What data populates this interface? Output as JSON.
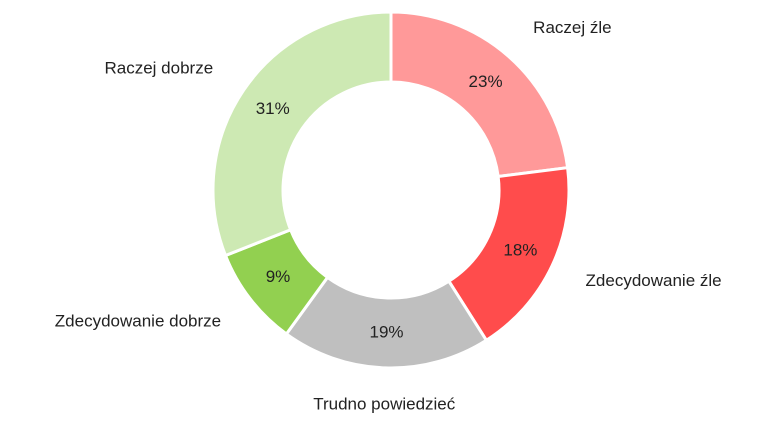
{
  "chart_data": {
    "type": "pie",
    "categories": [
      "Raczej źle",
      "Zdecydowanie źle",
      "Trudno powiedzieć",
      "Zdecydowanie dobrze",
      "Raczej dobrze"
    ],
    "values": [
      23,
      18,
      19,
      9,
      31
    ],
    "value_labels": [
      "23%",
      "18%",
      "19%",
      "9%",
      "31%"
    ],
    "colors": [
      "#ff9999",
      "#ff4c4c",
      "#bfbfbf",
      "#92d050",
      "#cde9b3"
    ]
  }
}
